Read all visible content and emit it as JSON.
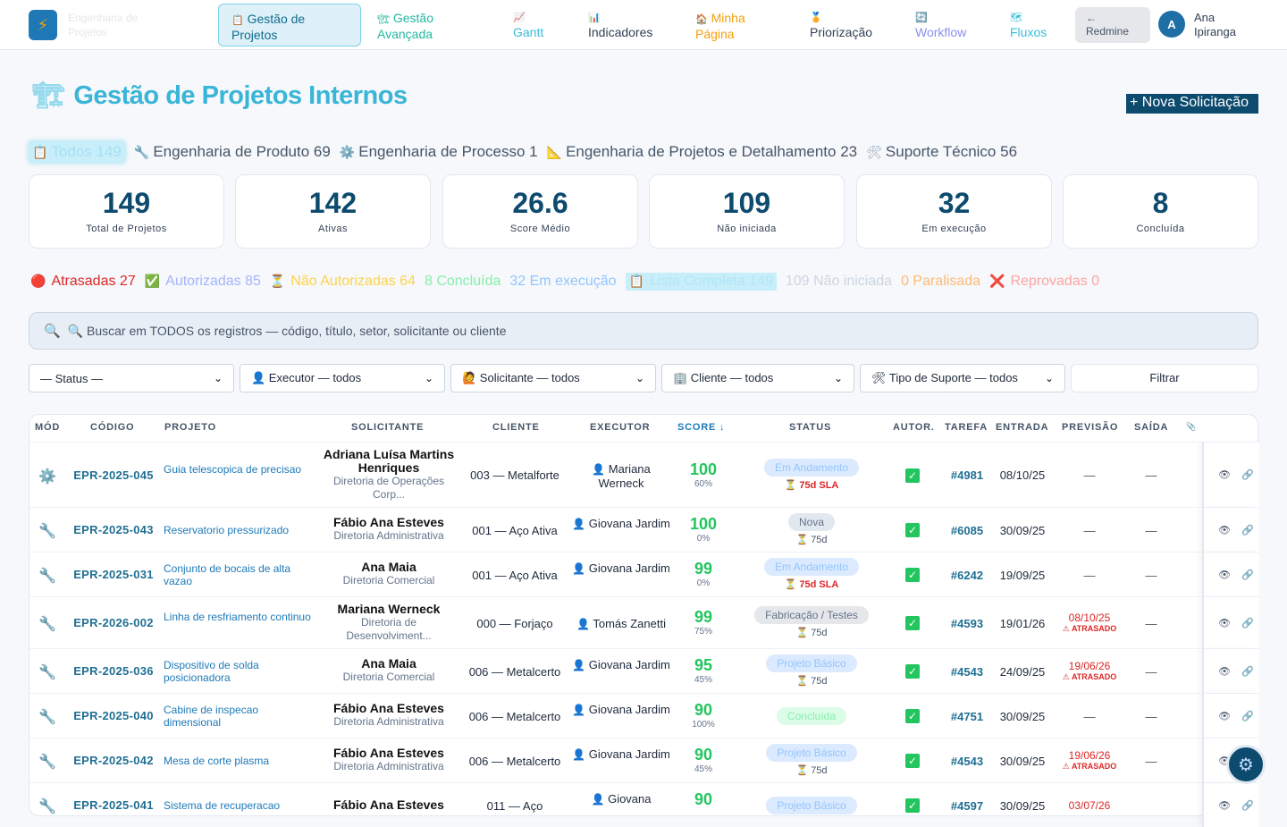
{
  "app": {
    "logo_text_1": "Engenharia de",
    "logo_text_2": "Projetos"
  },
  "nav": {
    "items": [
      {
        "icon": "📋",
        "label": "Gestão de Projetos"
      },
      {
        "icon": "🏗",
        "label": "Gestão Avançada"
      },
      {
        "icon": "📈",
        "label": "Gantt"
      },
      {
        "icon": "📊",
        "label": "Indicadores"
      },
      {
        "icon": "🏠",
        "label": "Minha Página"
      },
      {
        "icon": "🏅",
        "label": "Priorização"
      },
      {
        "icon": "🔄",
        "label": "Workflow"
      },
      {
        "icon": "🗺",
        "label": "Fluxos"
      }
    ],
    "redmine": {
      "arrow": "←",
      "label": "Redmine"
    },
    "user": {
      "initial": "A",
      "first": "Ana",
      "last": "Ipiranga"
    }
  },
  "header": {
    "title": "Gestão de Projetos Internos",
    "title_icon": "🏗",
    "new_button": "+ Nova Solicitação"
  },
  "departments": [
    {
      "icon": "📋",
      "label": "Todos 149"
    },
    {
      "icon": "🔧",
      "label": "Engenharia de Produto 69"
    },
    {
      "icon": "⚙️",
      "label": "Engenharia de Processo 1"
    },
    {
      "icon": "📐",
      "label": "Engenharia de Projetos e Detalhamento 23"
    },
    {
      "icon": "🛠",
      "label": "Suporte Técnico 56"
    }
  ],
  "cards": [
    {
      "value": "149",
      "label": "Total de Projetos"
    },
    {
      "value": "142",
      "label": "Ativas"
    },
    {
      "value": "26.6",
      "label": "Score Médio"
    },
    {
      "value": "109",
      "label": "Não iniciada"
    },
    {
      "value": "32",
      "label": "Em execução"
    },
    {
      "value": "8",
      "label": "Concluída"
    }
  ],
  "chips": [
    {
      "icon": "🔴",
      "label": "Atrasadas 27",
      "color": "#dc2626"
    },
    {
      "icon": "✅",
      "label": "Autorizadas 85",
      "color": "#a5b4fc"
    },
    {
      "icon": "⏳",
      "label": "Não Autorizadas 64",
      "color": "#fcd34d"
    },
    {
      "icon": "",
      "label": "8 Concluída",
      "color": "#86efac"
    },
    {
      "icon": "",
      "label": "32 Em execução",
      "color": "#93c5fd"
    },
    {
      "icon": "📋",
      "label": "Lista Completa 149",
      "color": "#b2e6f6"
    },
    {
      "icon": "",
      "label": "109 Não iniciada",
      "color": "#cbd5e1"
    },
    {
      "icon": "",
      "label": "0 Paralisada",
      "color": "#fdba74"
    },
    {
      "icon": "❌",
      "label": "Reprovadas 0",
      "color": "#fca5a5"
    }
  ],
  "search": {
    "placeholder": "🔍 Buscar em TODOS os registros — código, título, setor, solicitante ou cliente"
  },
  "filters": [
    {
      "label": "— Status —"
    },
    {
      "label": "👤 Executor — todos"
    },
    {
      "label": "🙋 Solicitante — todos"
    },
    {
      "label": "🏢 Cliente — todos"
    },
    {
      "label": "🛠 Tipo de Suporte — todos"
    }
  ],
  "filter_button": "Filtrar",
  "table": {
    "headers": [
      "MÓD",
      "CÓDIGO",
      "PROJETO",
      "SOLICITANTE",
      "CLIENTE",
      "EXECUTOR",
      "SCORE ↓",
      "STATUS",
      "AUTOR.",
      "TAREFA",
      "ENTRADA",
      "PREVISÃO",
      "SAÍDA",
      "📎"
    ],
    "rows": [
      {
        "mod": "⚙️",
        "code": "EPR-2025-045",
        "project": "Guia telescopica de precisao",
        "sol_name": "Adriana Luísa Martins Henriques",
        "sol_dept": "Diretoria de Operações Corp...",
        "client": "003 — Metalforte",
        "exec": "Mariana Werneck",
        "score": "100",
        "pct": "60%",
        "status": "Em Andamento",
        "status_class": "b-and",
        "sla": "⏳ 75d SLA",
        "sla_late": true,
        "task": "#4981",
        "entry": "08/10/25",
        "prev": "—",
        "prev_late": false,
        "prev_flag": "",
        "exit": "—"
      },
      {
        "mod": "🔧",
        "code": "EPR-2025-043",
        "project": "Reservatorio pressurizado",
        "sol_name": "Fábio Ana Esteves",
        "sol_dept": "Diretoria Administrativa",
        "client": "001 — Aço Ativa",
        "exec": "Giovana Jardim",
        "score": "100",
        "pct": "0%",
        "status": "Nova",
        "status_class": "b-nova",
        "sla": "⏳ 75d",
        "sla_late": false,
        "task": "#6085",
        "entry": "30/09/25",
        "prev": "—",
        "prev_late": false,
        "prev_flag": "",
        "exit": "—"
      },
      {
        "mod": "🔧",
        "code": "EPR-2025-031",
        "project": "Conjunto de bocais de alta vazao",
        "sol_name": "Ana Maia",
        "sol_dept": "Diretoria Comercial",
        "client": "001 — Aço Ativa",
        "exec": "Giovana Jardim",
        "score": "99",
        "pct": "0%",
        "status": "Em Andamento",
        "status_class": "b-and",
        "sla": "⏳ 75d SLA",
        "sla_late": true,
        "task": "#6242",
        "entry": "19/09/25",
        "prev": "—",
        "prev_late": false,
        "prev_flag": "",
        "exit": "—"
      },
      {
        "mod": "🔧",
        "code": "EPR-2026-002",
        "project": "Linha de resfriamento continuo",
        "sol_name": "Mariana Werneck",
        "sol_dept": "Diretoria de Desenvolviment...",
        "client": "000 — Forjaço",
        "exec": "Tomás Zanetti",
        "score": "99",
        "pct": "75%",
        "status": "Fabricação / Testes",
        "status_class": "b-fab",
        "sla": "⏳ 75d",
        "sla_late": false,
        "task": "#4593",
        "entry": "19/01/26",
        "prev": "08/10/25",
        "prev_late": true,
        "prev_flag": "⚠ ATRASADO",
        "exit": "—"
      },
      {
        "mod": "🔧",
        "code": "EPR-2025-036",
        "project": "Dispositivo de solda posicionadora",
        "sol_name": "Ana Maia",
        "sol_dept": "Diretoria Comercial",
        "client": "006 — Metalcerto",
        "exec": "Giovana Jardim",
        "score": "95",
        "pct": "45%",
        "status": "Projeto Básico",
        "status_class": "b-pb",
        "sla": "⏳ 75d",
        "sla_late": false,
        "task": "#4543",
        "entry": "24/09/25",
        "prev": "19/06/26",
        "prev_late": true,
        "prev_flag": "⚠ ATRASADO",
        "exit": "—"
      },
      {
        "mod": "🔧",
        "code": "EPR-2025-040",
        "project": "Cabine de inspecao dimensional",
        "sol_name": "Fábio Ana Esteves",
        "sol_dept": "Diretoria Administrativa",
        "client": "006 — Metalcerto",
        "exec": "Giovana Jardim",
        "score": "90",
        "pct": "100%",
        "status": "Concluída",
        "status_class": "b-conc",
        "sla": "",
        "sla_late": false,
        "task": "#4751",
        "entry": "30/09/25",
        "prev": "—",
        "prev_late": false,
        "prev_flag": "",
        "exit": "—"
      },
      {
        "mod": "🔧",
        "code": "EPR-2025-042",
        "project": "Mesa de corte plasma",
        "sol_name": "Fábio Ana Esteves",
        "sol_dept": "Diretoria Administrativa",
        "client": "006 — Metalcerto",
        "exec": "Giovana Jardim",
        "score": "90",
        "pct": "45%",
        "status": "Projeto Básico",
        "status_class": "b-pb",
        "sla": "⏳ 75d",
        "sla_late": false,
        "task": "#4543",
        "entry": "30/09/25",
        "prev": "19/06/26",
        "prev_late": true,
        "prev_flag": "⚠ ATRASADO",
        "exit": "—"
      },
      {
        "mod": "🔧",
        "code": "EPR-2025-041",
        "project": "Sistema de recuperacao",
        "sol_name": "Fábio Ana Esteves",
        "sol_dept": "",
        "client": "011 — Aço",
        "exec": "Giovana",
        "score": "90",
        "pct": "",
        "status": "Projeto Básico",
        "status_class": "b-pb",
        "sla": "",
        "sla_late": false,
        "task": "#4597",
        "entry": "30/09/25",
        "prev": "03/07/26",
        "prev_late": true,
        "prev_flag": "",
        "exit": ""
      }
    ]
  },
  "fab": {
    "icon": "⚙"
  }
}
